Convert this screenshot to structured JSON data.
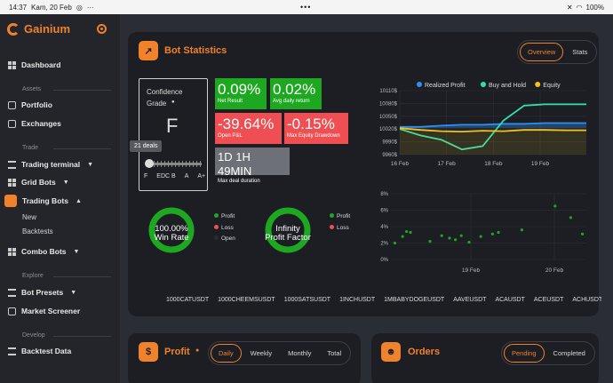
{
  "statusbar": {
    "time": "14:37",
    "date": "Kam, 20 Feb",
    "dots": "•••",
    "battery": "100%"
  },
  "brand": {
    "name": "Gainium",
    "accent": "#f0822c"
  },
  "sidebar": {
    "dashboard": "Dashboard",
    "sections": {
      "assets": "Assets",
      "trade": "Trade",
      "explore": "Explore",
      "develop": "Develop"
    },
    "portfolio": "Portfolio",
    "exchanges": "Exchanges",
    "trading_terminal": "Trading terminal",
    "grid_bots": "Grid Bots",
    "trading_bots": "Trading Bots",
    "new": "New",
    "backtests": "Backtests",
    "combo_bots": "Combo Bots",
    "bot_presets": "Bot Presets",
    "market_screener": "Market Screener",
    "backtest_data": "Backtest Data"
  },
  "stats_card": {
    "title": "Bot Statistics",
    "tabs": [
      "Overview",
      "Stats"
    ],
    "confidence": {
      "label1": "Confidence",
      "label2": "Grade",
      "info": "●",
      "grade": "F",
      "tooltip": "21 deals",
      "scale": [
        "F",
        "EDC B",
        "A",
        "A+"
      ]
    },
    "net_result": {
      "value": "0.09%",
      "label": "Net Result"
    },
    "avg_daily": {
      "value": "0.02%",
      "label": "Avg daily return"
    },
    "open_pl": {
      "value": "-39.64%",
      "label": "Open P&L"
    },
    "max_dd": {
      "value": "-0.15%",
      "label": "Max Equity Drawdown"
    },
    "duration": {
      "value": "1D 1H 49MIN",
      "label": "Max deal duration"
    },
    "win_rate": {
      "value": "100.00%",
      "label": "Win Rate"
    },
    "profit_factor": {
      "value": "Infinity",
      "label": "Profit Factor"
    },
    "legend_win": [
      "Profit",
      "Loss",
      "Open"
    ],
    "legend_pf": [
      "Profit",
      "Loss"
    ],
    "tickers": [
      "1000CATUSDT",
      "1000CHEEMSUSDT",
      "1000SATSUSDT",
      "1INCHUSDT",
      "1MBABYDOGEUSDT",
      "AAVEUSDT",
      "ACAUSDT",
      "ACEUSDT",
      "ACHUSDT",
      "AC"
    ]
  },
  "chart_data": [
    {
      "type": "line",
      "legend": [
        "Realized Profit",
        "Buy and Hold",
        "Equity"
      ],
      "colors": [
        "#2f8ff5",
        "#33e0a8",
        "#f5c21b"
      ],
      "y_ticks": [
        "10110$",
        "10080$",
        "10050$",
        "10020$",
        "9990$",
        "9960$"
      ],
      "x_ticks": [
        "16 Feb",
        "17 Feb",
        "18 Feb",
        "19 Feb"
      ],
      "ylim": [
        9960,
        10110
      ],
      "x": [
        0,
        0.5,
        1,
        1.5,
        2,
        2.5,
        3,
        3.5,
        4,
        4.5
      ],
      "series": [
        {
          "name": "Realized Profit",
          "values": [
            10025,
            10025,
            10028,
            10030,
            10030,
            10032,
            10032,
            10034,
            10034,
            10034
          ]
        },
        {
          "name": "Buy and Hold",
          "values": [
            10020,
            10005,
            9995,
            9972,
            9980,
            10040,
            10075,
            10078,
            10078,
            10078
          ]
        },
        {
          "name": "Equity",
          "values": [
            10022,
            10018,
            10015,
            10014,
            10016,
            10015,
            10018,
            10018,
            10017,
            10017
          ]
        }
      ]
    },
    {
      "type": "scatter",
      "y_ticks": [
        "8%",
        "6%",
        "4%",
        "2%",
        "0%"
      ],
      "x_ticks": [
        "19 Feb",
        "20 Feb"
      ],
      "ylim": [
        0,
        8
      ],
      "color": "#1ea821",
      "points": [
        [
          0.2,
          2.0
        ],
        [
          0.6,
          2.8
        ],
        [
          0.8,
          3.4
        ],
        [
          1.0,
          3.3
        ],
        [
          2.0,
          2.2
        ],
        [
          2.6,
          2.9
        ],
        [
          3.0,
          2.6
        ],
        [
          3.3,
          2.4
        ],
        [
          3.6,
          2.9
        ],
        [
          4.0,
          2.1
        ],
        [
          4.6,
          2.8
        ],
        [
          5.2,
          3.1
        ],
        [
          5.5,
          3.3
        ],
        [
          6.7,
          3.6
        ],
        [
          8.4,
          6.5
        ],
        [
          9.2,
          5.1
        ],
        [
          9.8,
          3.1
        ]
      ]
    }
  ],
  "profit_card": {
    "title": "Profit",
    "info": "●",
    "tabs": [
      "Daily",
      "Weekly",
      "Monthly",
      "Total"
    ]
  },
  "orders_card": {
    "title": "Orders",
    "tabs": [
      "Pending",
      "Completed"
    ]
  }
}
